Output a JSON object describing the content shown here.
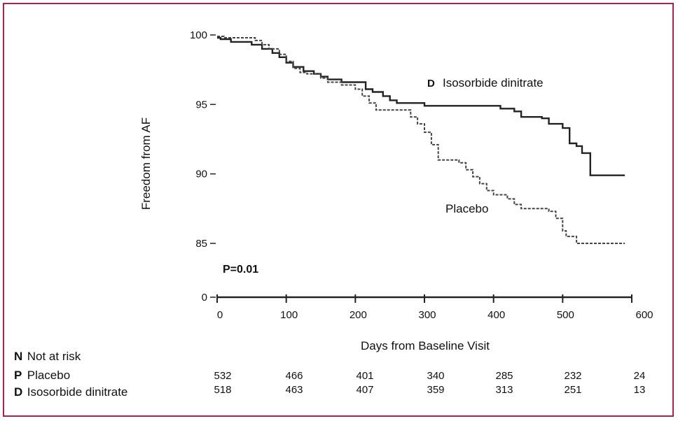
{
  "chart_data": {
    "type": "line",
    "xlabel": "Days from Baseline Visit",
    "ylabel": "Freedom from AF",
    "x_ticks": [
      0,
      100,
      200,
      300,
      400,
      500,
      600
    ],
    "y_ticks": [
      "0",
      "85",
      "90",
      "95",
      "100"
    ],
    "xlim": [
      0,
      600
    ],
    "ylim": [
      85,
      100
    ],
    "y_axis_break": true,
    "annotation": "P=0.01",
    "series": [
      {
        "name": "Isosorbide dinitrate",
        "style": "solid",
        "color": "#222222",
        "label_position": "top-right",
        "x": [
          0,
          5,
          20,
          50,
          65,
          80,
          90,
          100,
          110,
          125,
          140,
          150,
          160,
          180,
          200,
          215,
          225,
          240,
          250,
          260,
          300,
          400,
          410,
          430,
          440,
          470,
          480,
          500,
          510,
          520,
          528,
          540,
          590
        ],
        "y": [
          99.8,
          99.7,
          99.5,
          99.3,
          99.0,
          98.7,
          98.4,
          98.0,
          97.7,
          97.4,
          97.2,
          97.0,
          96.8,
          96.6,
          96.6,
          96.1,
          95.9,
          95.6,
          95.3,
          95.1,
          94.9,
          94.9,
          94.7,
          94.5,
          94.1,
          94.0,
          93.6,
          93.3,
          92.2,
          92.0,
          91.5,
          89.9,
          89.9
        ]
      },
      {
        "name": "Placebo",
        "style": "dashed",
        "color": "#444444",
        "label_position": "middle-right",
        "x": [
          0,
          10,
          55,
          65,
          75,
          90,
          100,
          110,
          120,
          130,
          150,
          160,
          180,
          200,
          210,
          220,
          230,
          260,
          280,
          290,
          300,
          310,
          320,
          350,
          360,
          370,
          380,
          390,
          400,
          420,
          430,
          440,
          480,
          490,
          500,
          505,
          520,
          590
        ],
        "y": [
          99.9,
          99.8,
          99.6,
          99.3,
          99.0,
          98.6,
          98.1,
          97.6,
          97.3,
          97.2,
          96.9,
          96.6,
          96.4,
          96.1,
          95.6,
          95.1,
          94.6,
          94.6,
          94.1,
          93.6,
          93.0,
          92.1,
          91.0,
          90.8,
          90.3,
          89.8,
          89.3,
          88.8,
          88.5,
          88.2,
          87.8,
          87.5,
          87.3,
          86.8,
          85.9,
          85.5,
          85.0,
          85.0
        ]
      }
    ]
  },
  "risk_table": {
    "header": {
      "letter": "N",
      "label": "Not at risk"
    },
    "rows": [
      {
        "letter": "P",
        "label": "Placebo",
        "values": [
          532,
          466,
          401,
          340,
          285,
          232,
          24
        ]
      },
      {
        "letter": "D",
        "label": "Isosorbide dinitrate",
        "values": [
          518,
          463,
          407,
          359,
          313,
          251,
          13
        ]
      }
    ]
  },
  "legend_markers": {
    "isosorbide": "D"
  },
  "colors": {
    "border": "#a2244f",
    "axis": "#222222"
  }
}
